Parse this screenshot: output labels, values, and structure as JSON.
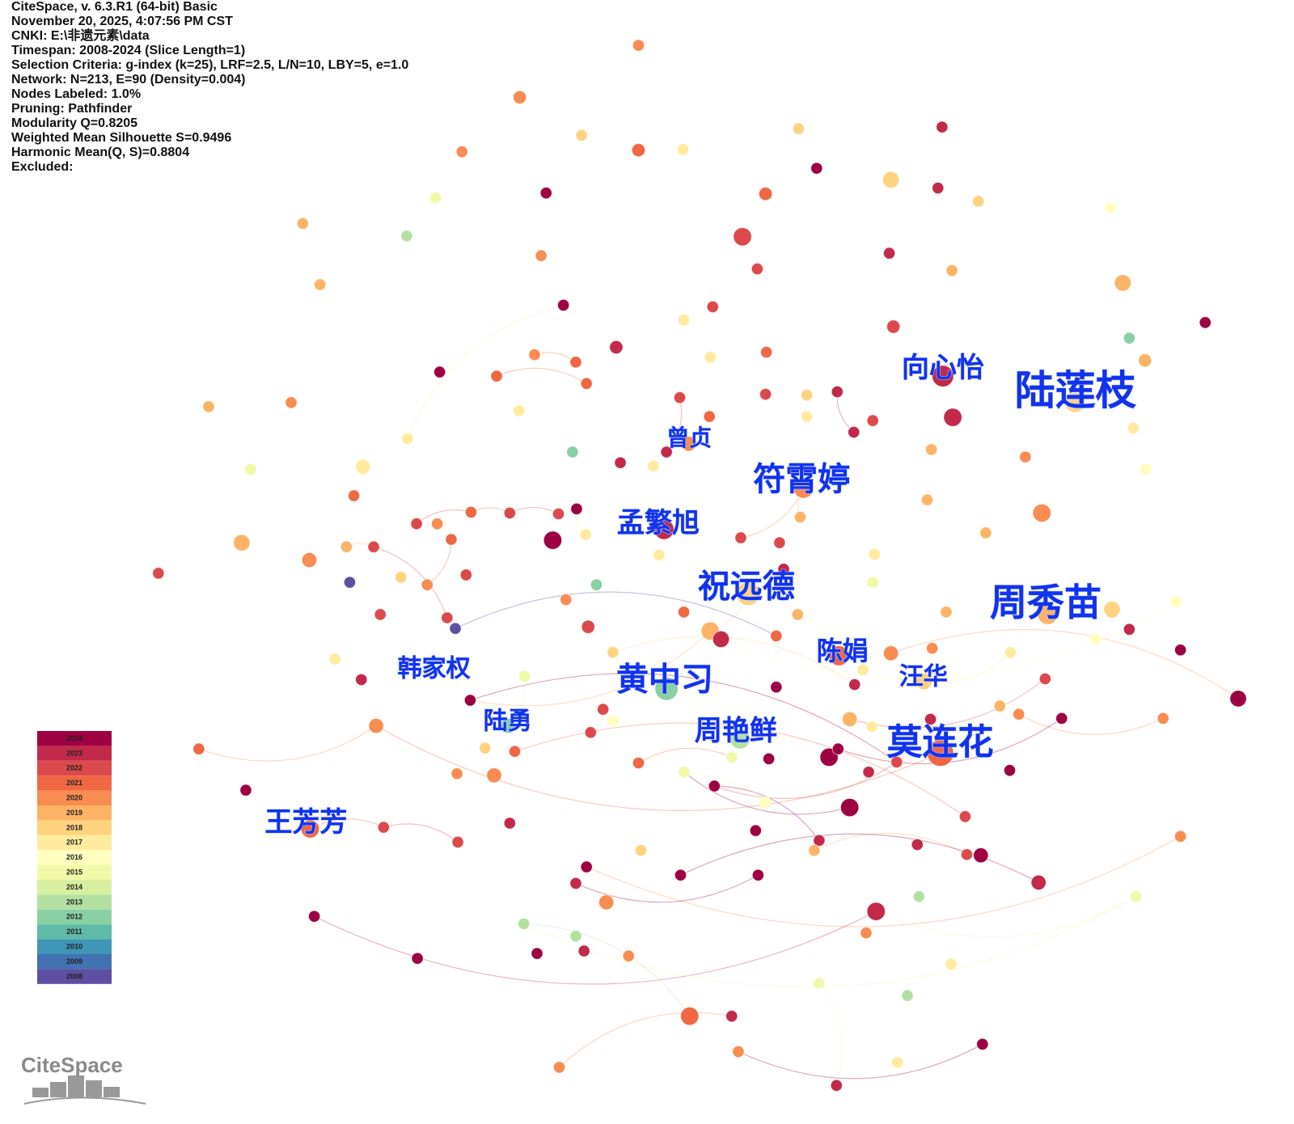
{
  "header": {
    "lines": [
      "CiteSpace, v. 6.3.R1 (64-bit) Basic",
      "November 20, 2025, 4:07:56 PM CST",
      "CNKI: E:\\非遗元素\\data",
      "Timespan: 2008-2024 (Slice Length=1)",
      "Selection Criteria: g-index (k=25), LRF=2.5, L/N=10, LBY=5, e=1.0",
      "Network: N=213, E=90 (Density=0.004)",
      "Nodes Labeled: 1.0%",
      "Pruning: Pathfinder",
      "Modularity Q=0.8205",
      "Weighted Mean Silhouette S=0.9496",
      "Harmonic Mean(Q, S)=0.8804",
      "Excluded:"
    ]
  },
  "labels": [
    "向心怡",
    "陆莲枝",
    "曾贞",
    "符霄婷",
    "孟繁旭",
    "祝远德",
    "周秀苗",
    "陈娟",
    "汪华",
    "韩家权",
    "黄中习",
    "陆勇",
    "周艳鲜",
    "莫连花",
    "王芳芳"
  ],
  "legend": {
    "years": [
      {
        "label": "2024",
        "color": "#9e0142"
      },
      {
        "label": "2023",
        "color": "#c2294a"
      },
      {
        "label": "2022",
        "color": "#dc494c"
      },
      {
        "label": "2021",
        "color": "#f06744"
      },
      {
        "label": "2020",
        "color": "#f88c51"
      },
      {
        "label": "2019",
        "color": "#fdb365"
      },
      {
        "label": "2018",
        "color": "#fed27f"
      },
      {
        "label": "2017",
        "color": "#feeb9d"
      },
      {
        "label": "2016",
        "color": "#fffebe"
      },
      {
        "label": "2015",
        "color": "#f0f9a7"
      },
      {
        "label": "2014",
        "color": "#d8ef9f"
      },
      {
        "label": "2013",
        "color": "#b3e0a2"
      },
      {
        "label": "2012",
        "color": "#89d0a4"
      },
      {
        "label": "2011",
        "color": "#5fbaa8"
      },
      {
        "label": "2010",
        "color": "#3f96b7"
      },
      {
        "label": "2009",
        "color": "#4272b2"
      },
      {
        "label": "2008",
        "color": "#5e4fa2"
      }
    ]
  },
  "logo": "CiteSpace"
}
